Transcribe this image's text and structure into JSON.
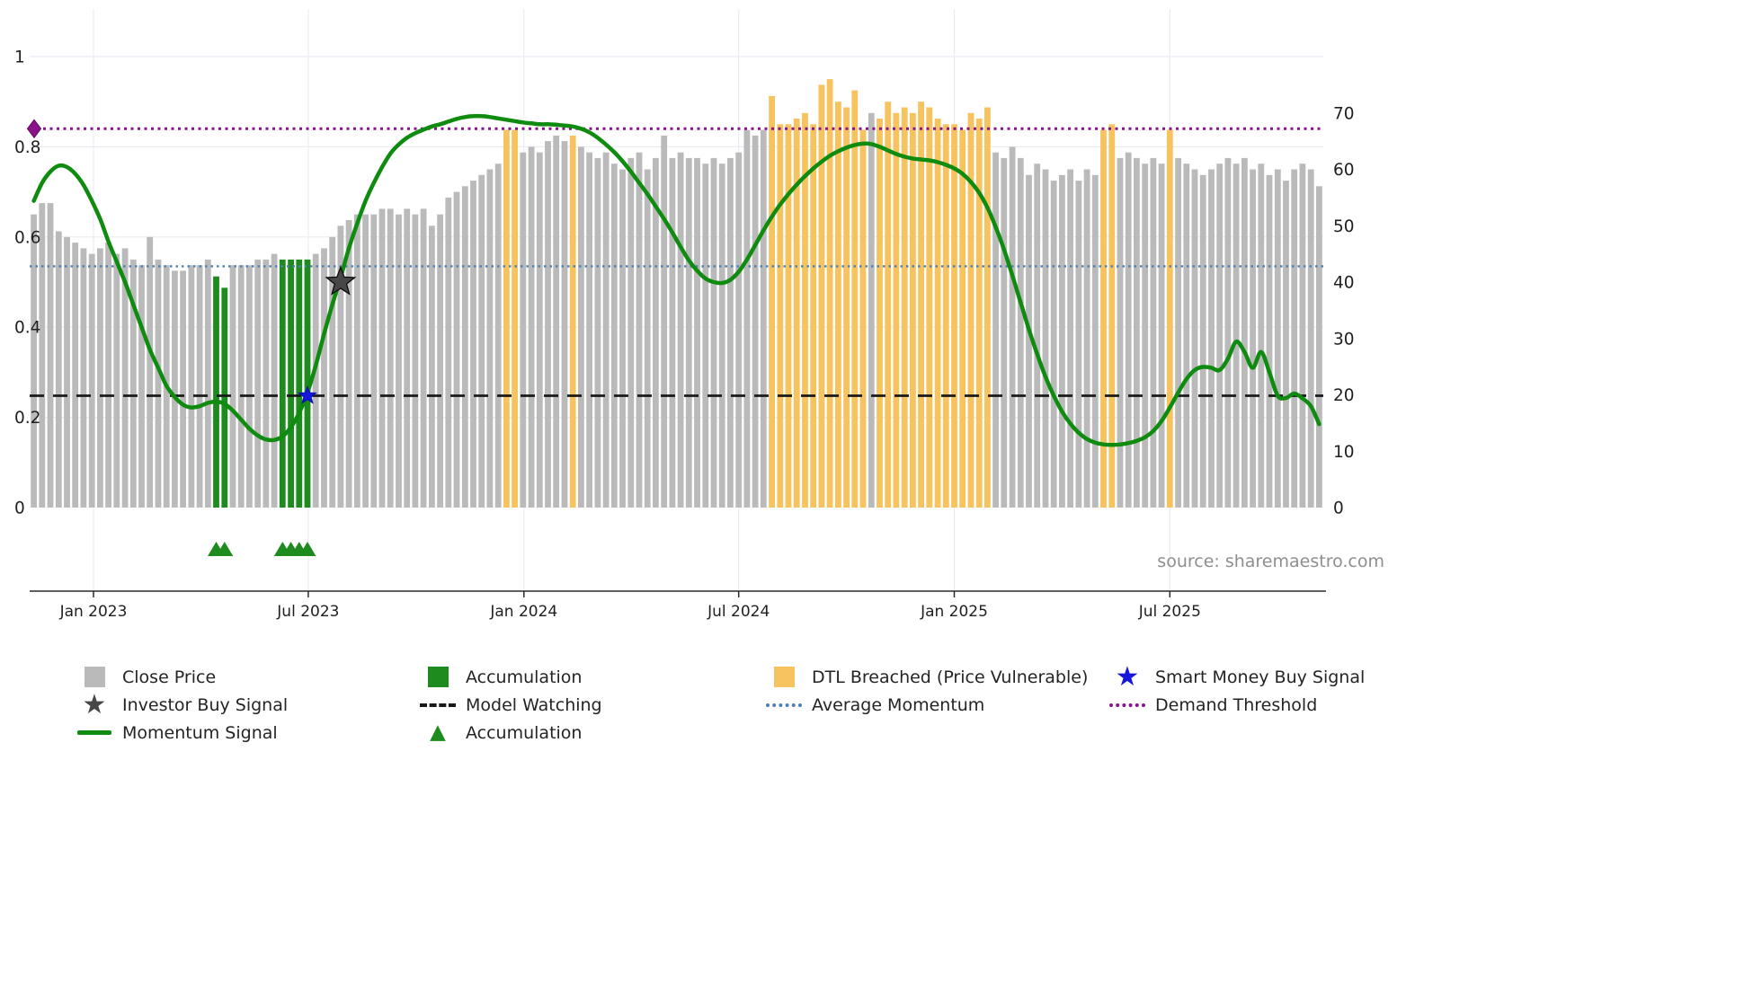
{
  "source_note": "source: sharemaestro.com",
  "icons": {
    "star": "★",
    "triangle": "▲"
  },
  "colors": {
    "close_price": "#bababa",
    "accumulation": "#1e8b1e",
    "dtl_breached": "#f7c35e",
    "momentum": "#0f8b0f",
    "average_momentum": "#4d80b3",
    "demand_threshold": "#8a128a",
    "model_watching": "#191919",
    "smart_money": "#1616dc",
    "investor_star": "#474747",
    "grid": "#e9ecf3",
    "axis_text": "#1f1f1f",
    "spine": "#2b2b2b"
  },
  "legend": {
    "close_price": "Close Price",
    "investor_buy": "Investor Buy Signal",
    "momentum": "Momentum Signal",
    "accumulation_bar": "Accumulation",
    "model_watching": "Model Watching",
    "accumulation_marker": "Accumulation",
    "dtl_breached": "DTL Breached (Price Vulnerable)",
    "average_momentum": "Average Momentum",
    "smart_money": "Smart Money Buy Signal",
    "demand_threshold": "Demand Threshold"
  },
  "chart_data": {
    "type": "bar",
    "description": "Weekly close price bars (right axis) with smoothed momentum signal line overlay (left axis 0-1), accumulation and DTL-breach highlighted bars, buy-signal markers and horizontal threshold lines.",
    "weeks": 156,
    "prices": [
      52,
      54,
      54,
      49,
      48,
      47,
      46,
      45,
      46,
      47,
      45,
      46,
      44,
      43,
      48,
      44,
      43,
      42,
      42,
      43,
      43,
      44,
      41,
      39,
      43,
      43,
      43,
      44,
      44,
      45,
      44,
      44,
      44,
      44,
      45,
      46,
      48,
      50,
      51,
      52,
      52,
      52,
      53,
      53,
      52,
      53,
      52,
      53,
      50,
      52,
      55,
      56,
      57,
      58,
      59,
      60,
      61,
      67,
      67,
      63,
      64,
      63,
      65,
      66,
      65,
      66,
      64,
      63,
      62,
      63,
      61,
      60,
      62,
      63,
      60,
      62,
      66,
      62,
      63,
      62,
      62,
      61,
      62,
      61,
      62,
      63,
      67,
      66,
      67,
      73,
      68,
      68,
      69,
      70,
      68,
      75,
      76,
      72,
      71,
      74,
      67,
      70,
      69,
      72,
      70,
      71,
      70,
      72,
      71,
      69,
      68,
      68,
      67,
      70,
      69,
      71,
      63,
      62,
      64,
      62,
      59,
      61,
      60,
      58,
      59,
      60,
      58,
      60,
      59,
      67,
      68,
      62,
      63,
      62,
      61,
      62,
      61,
      67,
      62,
      61,
      60,
      59,
      60,
      61,
      62,
      61,
      62,
      60,
      61,
      59,
      60,
      58,
      60,
      61,
      60,
      57
    ],
    "momentum": [
      0.68,
      0.72,
      0.745,
      0.758,
      0.755,
      0.74,
      0.715,
      0.68,
      0.64,
      0.59,
      0.545,
      0.5,
      0.45,
      0.4,
      0.35,
      0.31,
      0.27,
      0.245,
      0.228,
      0.222,
      0.225,
      0.232,
      0.235,
      0.23,
      0.215,
      0.195,
      0.175,
      0.16,
      0.151,
      0.15,
      0.158,
      0.178,
      0.21,
      0.255,
      0.315,
      0.385,
      0.45,
      0.51,
      0.575,
      0.63,
      0.68,
      0.72,
      0.755,
      0.785,
      0.805,
      0.82,
      0.83,
      0.838,
      0.845,
      0.85,
      0.856,
      0.862,
      0.866,
      0.868,
      0.868,
      0.866,
      0.863,
      0.86,
      0.857,
      0.854,
      0.852,
      0.85,
      0.85,
      0.849,
      0.847,
      0.845,
      0.84,
      0.832,
      0.82,
      0.805,
      0.788,
      0.768,
      0.745,
      0.72,
      0.695,
      0.668,
      0.64,
      0.61,
      0.578,
      0.548,
      0.525,
      0.508,
      0.5,
      0.498,
      0.505,
      0.523,
      0.55,
      0.582,
      0.615,
      0.645,
      0.672,
      0.695,
      0.716,
      0.735,
      0.752,
      0.767,
      0.78,
      0.79,
      0.798,
      0.804,
      0.807,
      0.806,
      0.8,
      0.792,
      0.784,
      0.778,
      0.774,
      0.772,
      0.77,
      0.766,
      0.76,
      0.752,
      0.74,
      0.722,
      0.698,
      0.665,
      0.622,
      0.572,
      0.515,
      0.455,
      0.395,
      0.34,
      0.29,
      0.248,
      0.213,
      0.186,
      0.166,
      0.152,
      0.144,
      0.14,
      0.139,
      0.14,
      0.143,
      0.148,
      0.156,
      0.17,
      0.192,
      0.222,
      0.255,
      0.285,
      0.305,
      0.312,
      0.31,
      0.305,
      0.33,
      0.368,
      0.345,
      0.31,
      0.345,
      0.3,
      0.248,
      0.243,
      0.253,
      0.242,
      0.225,
      0.185
    ],
    "accumulation_weeks": [
      22,
      23,
      30,
      31,
      32,
      33
    ],
    "dtl_breached_weeks": [
      57,
      58,
      65,
      89,
      90,
      91,
      92,
      93,
      94,
      95,
      96,
      97,
      98,
      99,
      100,
      102,
      103,
      104,
      105,
      106,
      107,
      108,
      109,
      110,
      111,
      112,
      113,
      114,
      115,
      129,
      130,
      137
    ],
    "x_axis": {
      "tick_labels": [
        "Jan 2023",
        "Jul 2023",
        "Jan 2024",
        "Jul 2024",
        "Jan 2025",
        "Jul 2025"
      ],
      "tick_weeks": [
        7.2,
        33.1,
        59.1,
        85.0,
        111.0,
        137.0
      ]
    },
    "left_axis": {
      "tick_labels": [
        "0",
        "0.2",
        "0.4",
        "0.6",
        "0.8",
        "1"
      ],
      "tick_values": [
        0,
        0.2,
        0.4,
        0.6,
        0.8,
        1
      ],
      "range": [
        0,
        1.1
      ]
    },
    "right_axis": {
      "tick_labels": [
        "0",
        "10",
        "20",
        "30",
        "40",
        "50",
        "60",
        "70"
      ],
      "tick_values": [
        0,
        10,
        20,
        30,
        40,
        50,
        60,
        70
      ],
      "range": [
        0,
        80
      ]
    },
    "reference_lines": {
      "demand_threshold": {
        "value": 0.84,
        "style": "dotted"
      },
      "average_momentum": {
        "value": 0.535,
        "style": "dotted"
      },
      "model_watching": {
        "value": 0.248,
        "style": "dashed"
      }
    },
    "markers": {
      "investor_buy": {
        "week": 37,
        "momentum": 0.5
      },
      "smart_money_buy": {
        "week": 33,
        "momentum": 0.248
      },
      "demand_threshold_marker": {
        "week": 0,
        "momentum": 0.84
      },
      "accumulation_triangle_weeks": [
        22,
        23,
        30,
        31,
        32,
        33
      ]
    }
  }
}
